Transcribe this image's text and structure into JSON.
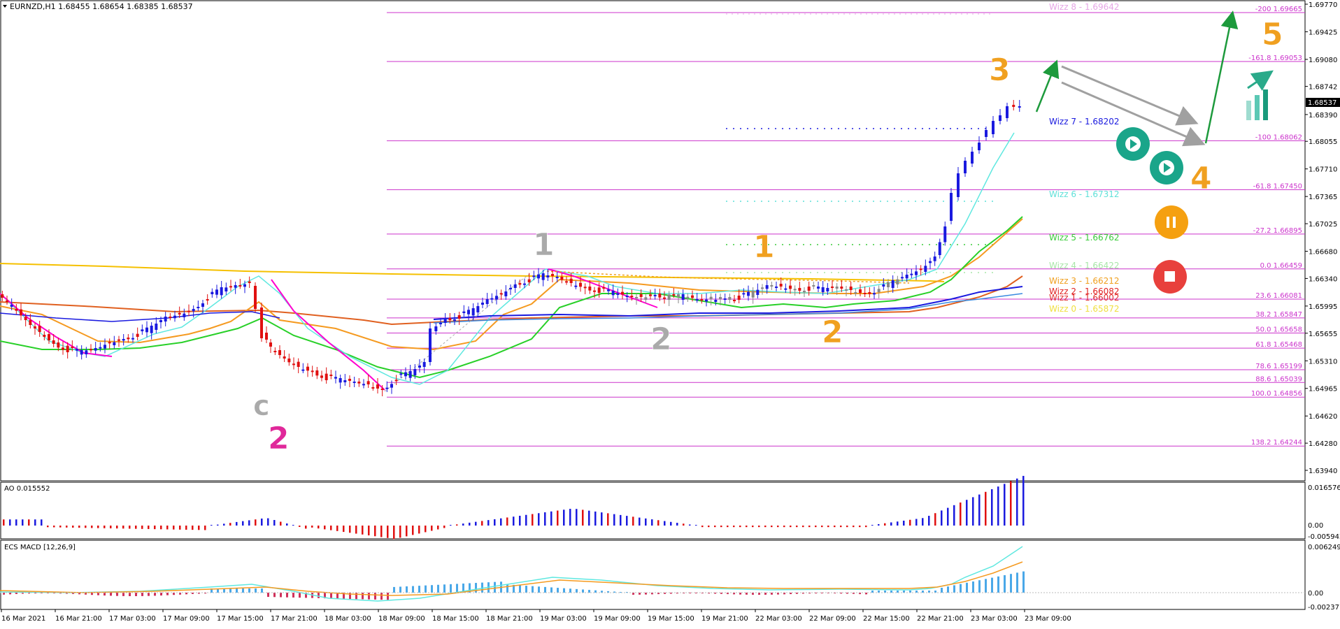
{
  "chart_data": {
    "type": "candlestick",
    "symbol_header": "EURNZD,H1  1.68455 1.68654 1.68385 1.68537",
    "current_price": "1.68537",
    "price_ticks": [
      "1.69770",
      "1.69425",
      "1.69080",
      "1.68742",
      "1.68390",
      "1.68055",
      "1.67710",
      "1.67365",
      "1.67025",
      "1.66680",
      "1.66340",
      "1.65995",
      "1.65655",
      "1.65310",
      "1.64965",
      "1.64620",
      "1.64280",
      "1.63940"
    ],
    "time_labels": [
      "16 Mar 2021",
      "16 Mar 21:00",
      "17 Mar 03:00",
      "17 Mar 09:00",
      "17 Mar 15:00",
      "17 Mar 21:00",
      "18 Mar 03:00",
      "18 Mar 09:00",
      "18 Mar 15:00",
      "18 Mar 21:00",
      "19 Mar 03:00",
      "19 Mar 09:00",
      "19 Mar 15:00",
      "19 Mar 21:00",
      "22 Mar 03:00",
      "22 Mar 09:00",
      "22 Mar 15:00",
      "22 Mar 21:00",
      "23 Mar 03:00",
      "23 Mar 09:00"
    ],
    "fib_levels": [
      {
        "label": "-200  1.69665",
        "price": 1.69665
      },
      {
        "label": "-161.8  1.69053",
        "price": 1.69053
      },
      {
        "label": "-100  1.68062",
        "price": 1.68062
      },
      {
        "label": "-61.8  1.67450",
        "price": 1.6745
      },
      {
        "label": "-27.2  1.66895",
        "price": 1.66895
      },
      {
        "label": "0.0  1.66459",
        "price": 1.66459
      },
      {
        "label": "23.6  1.66081",
        "price": 1.66081
      },
      {
        "label": "38.2  1.65847",
        "price": 1.65847
      },
      {
        "label": "50.0  1.65658",
        "price": 1.65658
      },
      {
        "label": "61.8  1.65468",
        "price": 1.65468
      },
      {
        "label": "78.6  1.65199",
        "price": 1.65199
      },
      {
        "label": "88.6  1.65039",
        "price": 1.65039
      },
      {
        "label": "100.0  1.64856",
        "price": 1.64856
      },
      {
        "label": "138.2  1.64244",
        "price": 1.64244
      }
    ],
    "wizz_levels": [
      {
        "label": "Wizz 8 - 1.69642",
        "color": "#e6a6e6",
        "price": 1.69642
      },
      {
        "label": "Wizz 7 - 1.68202",
        "color": "#1a1adf",
        "price": 1.68202
      },
      {
        "label": "Wizz 6 - 1.67312",
        "color": "#5fe0d8",
        "price": 1.67312
      },
      {
        "label": "Wizz 5 - 1.66762",
        "color": "#3ccc3c",
        "price": 1.66762
      },
      {
        "label": "Wizz 4 - 1.66422",
        "color": "#a8e6a8",
        "price": 1.66422
      },
      {
        "label": "Wizz 3 - 1.66212",
        "color": "#f0a020",
        "price": 1.66212
      },
      {
        "label": "Wizz 2 - 1.66082",
        "color": "#e02020",
        "price": 1.66082
      },
      {
        "label": "Wizz 1 - 1.66002",
        "color": "#e03030",
        "price": 1.66002
      },
      {
        "label": "Wizz 0 - 1.65872",
        "color": "#f0e040",
        "price": 1.65872
      }
    ],
    "wave_labels": [
      {
        "text": "c",
        "color": "#aaaaaa"
      },
      {
        "text": "2",
        "color": "#e0289a"
      },
      {
        "text": "1",
        "color": "#aaaaaa"
      },
      {
        "text": "2",
        "color": "#aaaaaa"
      },
      {
        "text": "1",
        "color": "#f0a020"
      },
      {
        "text": "2",
        "color": "#f0a020"
      },
      {
        "text": "3",
        "color": "#f0a020"
      },
      {
        "text": "4",
        "color": "#f0a020"
      },
      {
        "text": "5",
        "color": "#f0a020"
      }
    ],
    "ao_panel": {
      "title": "AO 0.015552",
      "ticks": [
        "0.016576",
        "0.00",
        "-0.005942"
      ]
    },
    "macd_panel": {
      "title": "ECS MACD [12,26,9]",
      "ticks": [
        "0.006249",
        "0.00",
        "-0.002377"
      ]
    },
    "colors": {
      "fib": "#cc33cc",
      "bull": "#1a1adf",
      "bear": "#e01010",
      "neutral": "#888888",
      "green": "#1d9a3c",
      "teal_button": "#1aa58a",
      "orange_button": "#f5a010",
      "red_button": "#e8403c"
    }
  },
  "buttons": {
    "play_icon": "play-icon",
    "pause_icon": "pause-icon",
    "stop_icon": "stop-icon"
  }
}
